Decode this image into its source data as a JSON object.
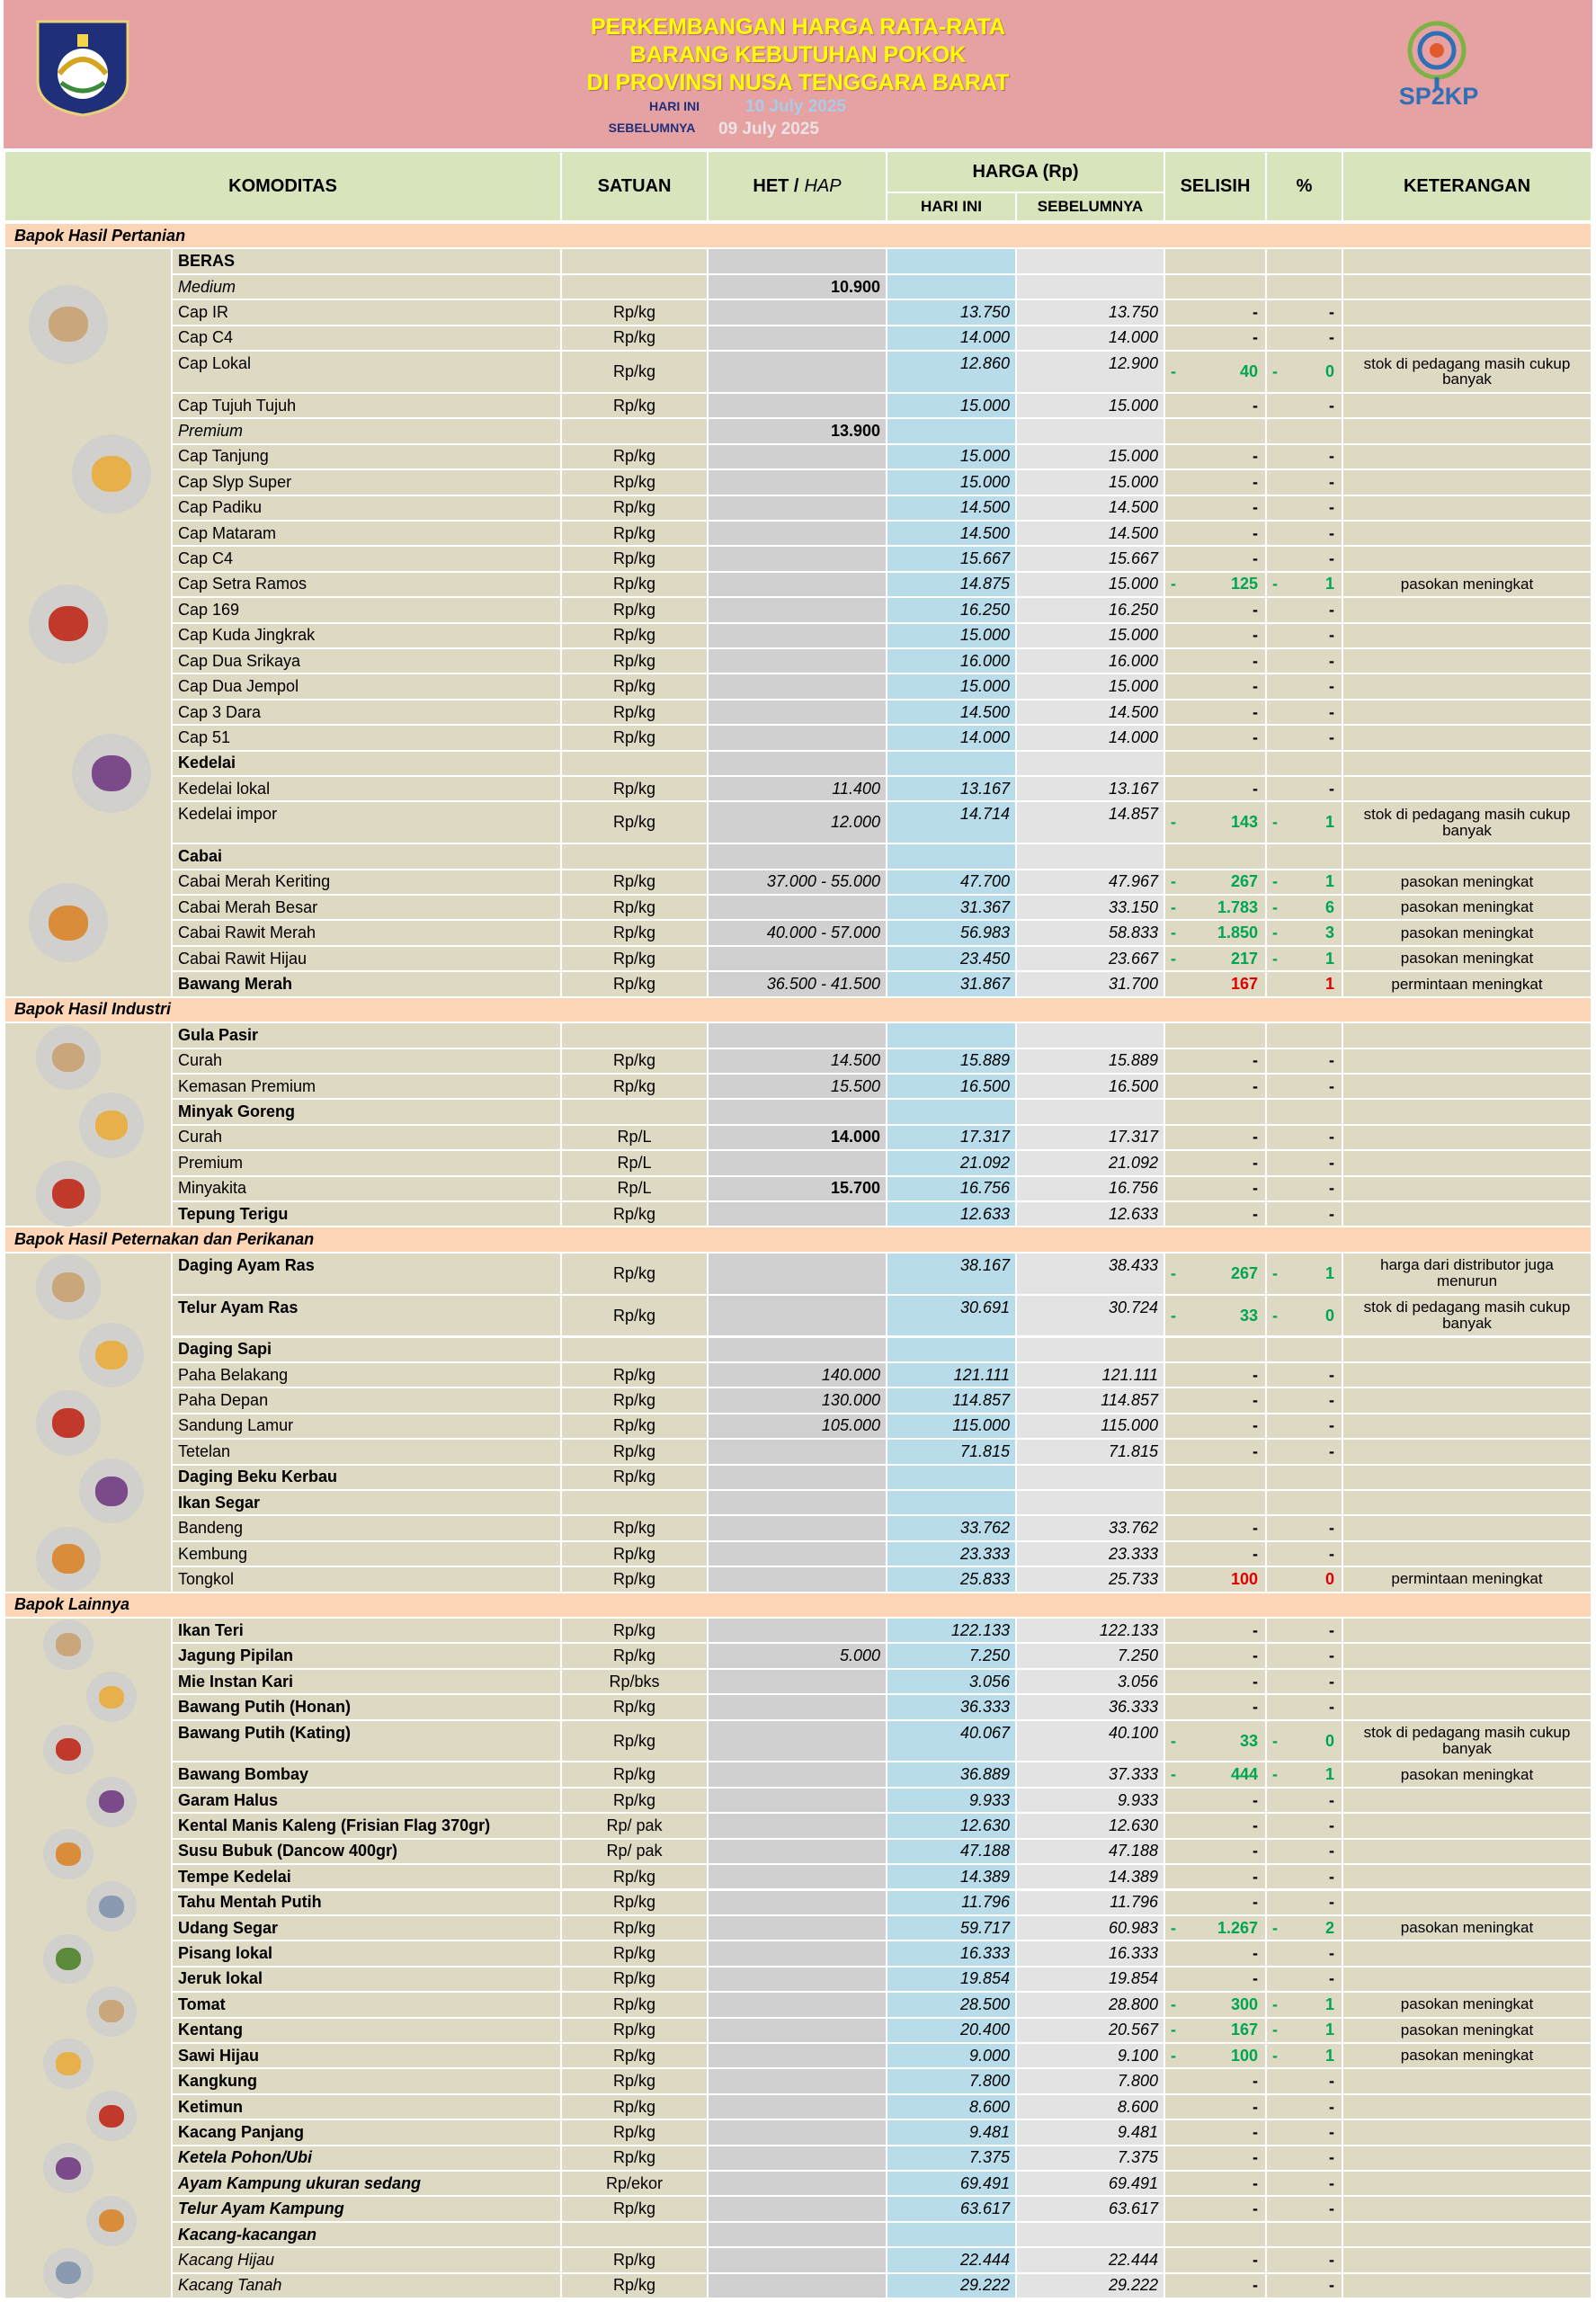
{
  "header": {
    "title_lines": [
      "PERKEMBANGAN HARGA RATA-RATA",
      "BARANG KEBUTUHAN POKOK",
      "DI PROVINSI NUSA TENGGARA BARAT"
    ],
    "today_label": "HARI INI",
    "today_date": "10 July 2025",
    "prev_label": "SEBELUMNYA",
    "prev_date": "09 July 2025",
    "logo_text": "SP2KP"
  },
  "columns": {
    "commodity": "KOMODITAS",
    "unit": "SATUAN",
    "het": "HET /",
    "het_italic": "HAP",
    "price": "HARGA (Rp)",
    "today": "HARI INI",
    "prev": "SEBELUMNYA",
    "diff": "SELISIH",
    "pct": "%",
    "note": "KETERANGAN"
  },
  "sections": [
    {
      "title": "Bapok Hasil Pertanian",
      "rows": [
        {
          "name": "BERAS",
          "style": "b"
        },
        {
          "name": "Medium",
          "style": "i",
          "het": "10.900",
          "het_bold": true
        },
        {
          "name": "Cap IR",
          "unit": "Rp/kg",
          "today": "13.750",
          "prev": "13.750",
          "diff": "-",
          "pct": "-"
        },
        {
          "name": "Cap C4",
          "unit": "Rp/kg",
          "today": "14.000",
          "prev": "14.000",
          "diff": "-",
          "pct": "-"
        },
        {
          "name": "Cap Lokal",
          "unit": "Rp/kg",
          "today": "12.860",
          "prev": "12.900",
          "diff_sign": "-",
          "diff": "40",
          "pct_sign": "-",
          "pct": "0",
          "trend": "down",
          "note": "stok di pedagang masih cukup banyak"
        },
        {
          "name": "Cap Tujuh Tujuh",
          "unit": "Rp/kg",
          "today": "15.000",
          "prev": "15.000",
          "diff": "-",
          "pct": "-"
        },
        {
          "name": "Premium",
          "style": "i",
          "het": "13.900",
          "het_bold": true
        },
        {
          "name": "Cap Tanjung",
          "unit": "Rp/kg",
          "today": "15.000",
          "prev": "15.000",
          "diff": "-",
          "pct": "-"
        },
        {
          "name": "Cap Slyp Super",
          "unit": "Rp/kg",
          "today": "15.000",
          "prev": "15.000",
          "diff": "-",
          "pct": "-"
        },
        {
          "name": "Cap Padiku",
          "unit": "Rp/kg",
          "today": "14.500",
          "prev": "14.500",
          "diff": "-",
          "pct": "-"
        },
        {
          "name": "Cap Mataram",
          "unit": "Rp/kg",
          "today": "14.500",
          "prev": "14.500",
          "diff": "-",
          "pct": "-"
        },
        {
          "name": "Cap C4",
          "unit": "Rp/kg",
          "today": "15.667",
          "prev": "15.667",
          "diff": "-",
          "pct": "-"
        },
        {
          "name": "Cap Setra Ramos",
          "unit": "Rp/kg",
          "today": "14.875",
          "prev": "15.000",
          "diff_sign": "-",
          "diff": "125",
          "pct_sign": "-",
          "pct": "1",
          "trend": "down",
          "note": "pasokan meningkat"
        },
        {
          "name": "Cap 169",
          "unit": "Rp/kg",
          "today": "16.250",
          "prev": "16.250",
          "diff": "-",
          "pct": "-"
        },
        {
          "name": "Cap Kuda Jingkrak",
          "unit": "Rp/kg",
          "today": "15.000",
          "prev": "15.000",
          "diff": "-",
          "pct": "-"
        },
        {
          "name": "Cap Dua Srikaya",
          "unit": "Rp/kg",
          "today": "16.000",
          "prev": "16.000",
          "diff": "-",
          "pct": "-"
        },
        {
          "name": "Cap Dua Jempol",
          "unit": "Rp/kg",
          "today": "15.000",
          "prev": "15.000",
          "diff": "-",
          "pct": "-"
        },
        {
          "name": "Cap 3 Dara",
          "unit": "Rp/kg",
          "today": "14.500",
          "prev": "14.500",
          "diff": "-",
          "pct": "-"
        },
        {
          "name": "Cap 51",
          "unit": "Rp/kg",
          "today": "14.000",
          "prev": "14.000",
          "diff": "-",
          "pct": "-"
        },
        {
          "name": "Kedelai",
          "style": "b"
        },
        {
          "name": "Kedelai lokal",
          "unit": "Rp/kg",
          "het": "11.400",
          "today": "13.167",
          "prev": "13.167",
          "diff": "-",
          "pct": "-"
        },
        {
          "name": "Kedelai impor",
          "unit": "Rp/kg",
          "het": "12.000",
          "today": "14.714",
          "prev": "14.857",
          "diff_sign": "-",
          "diff": "143",
          "pct_sign": "-",
          "pct": "1",
          "trend": "down",
          "note": "stok di pedagang masih cukup banyak"
        },
        {
          "name": "Cabai",
          "style": "b"
        },
        {
          "name": "Cabai Merah Keriting",
          "unit": "Rp/kg",
          "het": "37.000 - 55.000",
          "today": "47.700",
          "prev": "47.967",
          "diff_sign": "-",
          "diff": "267",
          "pct_sign": "-",
          "pct": "1",
          "trend": "down",
          "note": "pasokan meningkat"
        },
        {
          "name": "Cabai Merah Besar",
          "unit": "Rp/kg",
          "today": "31.367",
          "prev": "33.150",
          "diff_sign": "-",
          "diff": "1.783",
          "pct_sign": "-",
          "pct": "6",
          "trend": "down",
          "note": "pasokan meningkat"
        },
        {
          "name": "Cabai Rawit Merah",
          "unit": "Rp/kg",
          "het": "40.000 - 57.000",
          "today": "56.983",
          "prev": "58.833",
          "diff_sign": "-",
          "diff": "1.850",
          "pct_sign": "-",
          "pct": "3",
          "trend": "down",
          "note": "pasokan meningkat"
        },
        {
          "name": "Cabai Rawit Hijau",
          "unit": "Rp/kg",
          "today": "23.450",
          "prev": "23.667",
          "diff_sign": "-",
          "diff": "217",
          "pct_sign": "-",
          "pct": "1",
          "trend": "down",
          "note": "pasokan meningkat"
        },
        {
          "name": "Bawang Merah",
          "style": "b",
          "unit": "Rp/kg",
          "het": "36.500 - 41.500",
          "today": "31.867",
          "prev": "31.700",
          "diff": "167",
          "pct": "1",
          "trend": "up",
          "note": "permintaan meningkat"
        }
      ]
    },
    {
      "title": "Bapok Hasil Industri",
      "rows": [
        {
          "name": "Gula Pasir",
          "style": "b"
        },
        {
          "name": "Curah",
          "unit": "Rp/kg",
          "het": "14.500",
          "today": "15.889",
          "prev": "15.889",
          "diff": "-",
          "pct": "-"
        },
        {
          "name": "Kemasan Premium",
          "unit": "Rp/kg",
          "het": "15.500",
          "today": "16.500",
          "prev": "16.500",
          "diff": "-",
          "pct": "-"
        },
        {
          "name": "Minyak Goreng",
          "style": "b"
        },
        {
          "name": "Curah",
          "unit": "Rp/L",
          "het": "14.000",
          "het_bold": true,
          "today": "17.317",
          "prev": "17.317",
          "diff": "-",
          "pct": "-"
        },
        {
          "name": "Premium",
          "unit": "Rp/L",
          "today": "21.092",
          "prev": "21.092",
          "diff": "-",
          "pct": "-"
        },
        {
          "name": "Minyakita",
          "unit": "Rp/L",
          "het": "15.700",
          "het_bold": true,
          "today": "16.756",
          "prev": "16.756",
          "diff": "-",
          "pct": "-"
        },
        {
          "name": "Tepung Terigu",
          "style": "b",
          "unit": "Rp/kg",
          "today": "12.633",
          "prev": "12.633",
          "diff": "-",
          "pct": "-"
        }
      ]
    },
    {
      "title": "Bapok Hasil Peternakan dan Perikanan",
      "rows": [
        {
          "name": "Daging Ayam Ras",
          "style": "b",
          "unit": "Rp/kg",
          "today": "38.167",
          "prev": "38.433",
          "diff_sign": "-",
          "diff": "267",
          "pct_sign": "-",
          "pct": "1",
          "trend": "down",
          "note": "harga dari distributor juga menurun"
        },
        {
          "name": "Telur Ayam Ras",
          "style": "b",
          "unit": "Rp/kg",
          "today": "30.691",
          "prev": "30.724",
          "diff_sign": "-",
          "diff": "33",
          "pct_sign": "-",
          "pct": "0",
          "trend": "down",
          "note": "stok di pedagang masih cukup banyak"
        },
        {
          "name": "Daging Sapi",
          "style": "b"
        },
        {
          "name": "Paha Belakang",
          "unit": "Rp/kg",
          "het": "140.000",
          "today": "121.111",
          "prev": "121.111",
          "diff": "-",
          "pct": "-"
        },
        {
          "name": "Paha Depan",
          "unit": "Rp/kg",
          "het": "130.000",
          "today": "114.857",
          "prev": "114.857",
          "diff": "-",
          "pct": "-"
        },
        {
          "name": "Sandung Lamur",
          "unit": "Rp/kg",
          "het": "105.000",
          "today": "115.000",
          "prev": "115.000",
          "diff": "-",
          "pct": "-"
        },
        {
          "name": "Tetelan",
          "unit": "Rp/kg",
          "today": "71.815",
          "prev": "71.815",
          "diff": "-",
          "pct": "-"
        },
        {
          "name": "Daging Beku Kerbau",
          "style": "b",
          "unit": "Rp/kg"
        },
        {
          "name": "Ikan Segar",
          "style": "b"
        },
        {
          "name": "Bandeng",
          "unit": "Rp/kg",
          "today": "33.762",
          "prev": "33.762",
          "diff": "-",
          "pct": "-"
        },
        {
          "name": "Kembung",
          "unit": "Rp/kg",
          "today": "23.333",
          "prev": "23.333",
          "diff": "-",
          "pct": "-"
        },
        {
          "name": "Tongkol",
          "unit": "Rp/kg",
          "today": "25.833",
          "prev": "25.733",
          "diff": "100",
          "pct": "0",
          "trend": "up",
          "note": "permintaan meningkat"
        }
      ]
    },
    {
      "title": "Bapok Lainnya",
      "rows": [
        {
          "name": "Ikan Teri",
          "style": "b",
          "unit": "Rp/kg",
          "today": "122.133",
          "prev": "122.133",
          "diff": "-",
          "pct": "-"
        },
        {
          "name": "Jagung Pipilan",
          "style": "b",
          "unit": "Rp/kg",
          "het": "5.000",
          "today": "7.250",
          "prev": "7.250",
          "diff": "-",
          "pct": "-"
        },
        {
          "name": "Mie Instan Kari",
          "style": "b",
          "unit": "Rp/bks",
          "today": "3.056",
          "prev": "3.056",
          "diff": "-",
          "pct": "-"
        },
        {
          "name": "Bawang Putih (Honan)",
          "style": "b",
          "unit": "Rp/kg",
          "today": "36.333",
          "prev": "36.333",
          "diff": "-",
          "pct": "-"
        },
        {
          "name": "Bawang Putih (Kating)",
          "style": "b",
          "unit": "Rp/kg",
          "today": "40.067",
          "prev": "40.100",
          "diff_sign": "-",
          "diff": "33",
          "pct_sign": "-",
          "pct": "0",
          "trend": "down",
          "note": "stok di pedagang masih cukup banyak"
        },
        {
          "name": "Bawang Bombay",
          "style": "b",
          "unit": "Rp/kg",
          "today": "36.889",
          "prev": "37.333",
          "diff_sign": "-",
          "diff": "444",
          "pct_sign": "-",
          "pct": "1",
          "trend": "down",
          "note": "pasokan meningkat"
        },
        {
          "name": "Garam Halus",
          "style": "b",
          "unit": "Rp/kg",
          "today": "9.933",
          "prev": "9.933",
          "diff": "-",
          "pct": "-"
        },
        {
          "name": "Kental Manis Kaleng (Frisian Flag 370gr)",
          "style": "b",
          "unit": "Rp/ pak",
          "today": "12.630",
          "prev": "12.630",
          "diff": "-",
          "pct": "-"
        },
        {
          "name": "Susu Bubuk (Dancow 400gr)",
          "style": "b",
          "unit": "Rp/ pak",
          "today": "47.188",
          "prev": "47.188",
          "diff": "-",
          "pct": "-"
        },
        {
          "name": "Tempe Kedelai",
          "style": "b",
          "unit": "Rp/kg",
          "today": "14.389",
          "prev": "14.389",
          "diff": "-",
          "pct": "-"
        },
        {
          "name": "Tahu Mentah Putih",
          "style": "b",
          "unit": "Rp/kg",
          "today": "11.796",
          "prev": "11.796",
          "diff": "-",
          "pct": "-"
        },
        {
          "name": "Udang Segar",
          "style": "b",
          "unit": "Rp/kg",
          "today": "59.717",
          "prev": "60.983",
          "diff_sign": "-",
          "diff": "1.267",
          "pct_sign": "-",
          "pct": "2",
          "trend": "down",
          "note": "pasokan meningkat"
        },
        {
          "name": "Pisang lokal",
          "style": "b",
          "unit": "Rp/kg",
          "today": "16.333",
          "prev": "16.333",
          "diff": "-",
          "pct": "-"
        },
        {
          "name": "Jeruk lokal",
          "style": "b",
          "unit": "Rp/kg",
          "today": "19.854",
          "prev": "19.854",
          "diff": "-",
          "pct": "-"
        },
        {
          "name": "Tomat",
          "style": "b",
          "unit": "Rp/kg",
          "today": "28.500",
          "prev": "28.800",
          "diff_sign": "-",
          "diff": "300",
          "pct_sign": "-",
          "pct": "1",
          "trend": "down",
          "note": "pasokan meningkat"
        },
        {
          "name": "Kentang",
          "style": "b",
          "unit": "Rp/kg",
          "today": "20.400",
          "prev": "20.567",
          "diff_sign": "-",
          "diff": "167",
          "pct_sign": "-",
          "pct": "1",
          "trend": "down",
          "note": "pasokan meningkat"
        },
        {
          "name": "Sawi Hijau",
          "style": "b",
          "unit": "Rp/kg",
          "today": "9.000",
          "prev": "9.100",
          "diff_sign": "-",
          "diff": "100",
          "pct_sign": "-",
          "pct": "1",
          "trend": "down",
          "note": "pasokan meningkat"
        },
        {
          "name": "Kangkung",
          "style": "b",
          "unit": "Rp/kg",
          "today": "7.800",
          "prev": "7.800",
          "diff": "-",
          "pct": "-"
        },
        {
          "name": "Ketimun",
          "style": "b",
          "unit": "Rp/kg",
          "today": "8.600",
          "prev": "8.600",
          "diff": "-",
          "pct": "-"
        },
        {
          "name": "Kacang Panjang",
          "style": "b",
          "unit": "Rp/kg",
          "today": "9.481",
          "prev": "9.481",
          "diff": "-",
          "pct": "-"
        },
        {
          "name": "Ketela Pohon/Ubi",
          "style": "bi",
          "unit": "Rp/kg",
          "today": "7.375",
          "prev": "7.375",
          "diff": "-",
          "pct": "-"
        },
        {
          "name": "Ayam Kampung ukuran sedang",
          "style": "bi",
          "unit": "Rp/ekor",
          "today": "69.491",
          "prev": "69.491",
          "diff": "-",
          "pct": "-"
        },
        {
          "name": "Telur Ayam Kampung",
          "style": "bi",
          "unit": "Rp/kg",
          "today": "63.617",
          "prev": "63.617",
          "diff": "-",
          "pct": "-"
        },
        {
          "name": "Kacang-kacangan",
          "style": "bi"
        },
        {
          "name": "Kacang Hijau",
          "style": "i",
          "unit": "Rp/kg",
          "today": "22.444",
          "prev": "22.444",
          "diff": "-",
          "pct": "-"
        },
        {
          "name": "Kacang Tanah",
          "style": "i",
          "unit": "Rp/kg",
          "today": "29.222",
          "prev": "29.222",
          "diff": "-",
          "pct": "-"
        }
      ]
    }
  ]
}
